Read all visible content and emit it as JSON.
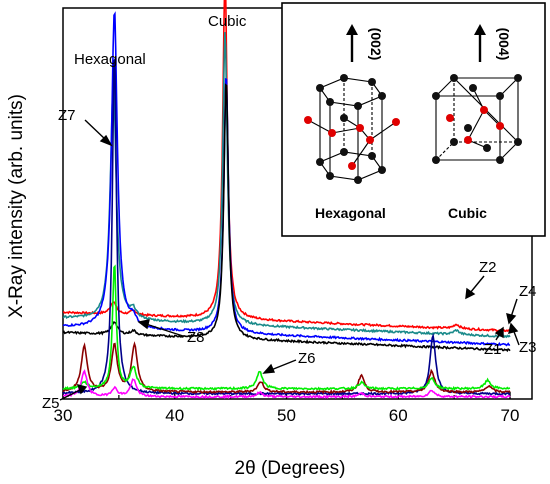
{
  "chart_data": {
    "type": "line",
    "xlabel": "2θ (Degrees)",
    "ylabel": "X-Ray intensity (arb. units)",
    "xlim": [
      30,
      70
    ],
    "xticks": [
      "30",
      "40",
      "50",
      "60",
      "70"
    ],
    "y_ticks_shown": false,
    "grid": false,
    "series": [
      {
        "name": "Z2",
        "color": "#ff0000",
        "baseline": 20.4,
        "slope": -0.11,
        "peaks": [
          {
            "x": 34.5,
            "h": 3
          },
          {
            "x": 36.3,
            "h": 1
          },
          {
            "x": 44.5,
            "h": 82,
            "w": 0.24
          },
          {
            "x": 65.2,
            "h": 1
          }
        ]
      },
      {
        "name": "Z4",
        "color": "#1a8a8a",
        "baseline": 19.0,
        "slope": -0.11,
        "peaks": [
          {
            "x": 34.5,
            "h": 56
          },
          {
            "x": 36.3,
            "h": 2
          },
          {
            "x": 44.5,
            "h": 70,
            "w": 0.24
          },
          {
            "x": 65.2,
            "h": 1
          }
        ]
      },
      {
        "name": "Z3",
        "color": "#0000ff",
        "baseline": 16.9,
        "slope": -0.105,
        "peaks": [
          {
            "x": 34.6,
            "h": 76
          },
          {
            "x": 36.3,
            "h": 2
          },
          {
            "x": 44.6,
            "h": 62,
            "w": 0.24
          }
        ]
      },
      {
        "name": "Z1",
        "color": "#000000",
        "baseline": 15.6,
        "slope": -0.105,
        "peaks": [
          {
            "x": 34.6,
            "h": 3
          },
          {
            "x": 36.3,
            "h": 1
          },
          {
            "x": 44.6,
            "h": 62,
            "w": 0.24
          }
        ]
      },
      {
        "name": "Z7",
        "color": "#00008b",
        "baseline": 1.0,
        "slope": 0,
        "peaks": [
          {
            "x": 34.6,
            "h": 82,
            "w": 0.22
          },
          {
            "x": 63.1,
            "h": 14,
            "w": 0.3
          }
        ]
      },
      {
        "name": "Z8",
        "color": "#8b0000",
        "baseline": 1.4,
        "slope": 0,
        "peaks": [
          {
            "x": 31.9,
            "h": 11
          },
          {
            "x": 34.6,
            "h": 11
          },
          {
            "x": 36.4,
            "h": 11
          },
          {
            "x": 47.7,
            "h": 2.5
          },
          {
            "x": 56.7,
            "h": 4
          },
          {
            "x": 63.0,
            "h": 5
          },
          {
            "x": 68.1,
            "h": 1.5
          }
        ]
      },
      {
        "name": "Z6",
        "color": "#00ee00",
        "baseline": 2.2,
        "slope": 0,
        "peaks": [
          {
            "x": 31.9,
            "h": 1.5
          },
          {
            "x": 34.6,
            "h": 30,
            "w": 0.2
          },
          {
            "x": 36.3,
            "h": 5
          },
          {
            "x": 47.6,
            "h": 4
          },
          {
            "x": 56.7,
            "h": 1.5
          },
          {
            "x": 63.0,
            "h": 2.5
          },
          {
            "x": 68.0,
            "h": 2
          }
        ]
      },
      {
        "name": "Z5",
        "color": "#ff00ff",
        "baseline": 0.3,
        "slope": 0,
        "peaks": [
          {
            "x": 31.9,
            "h": 6
          },
          {
            "x": 34.6,
            "h": 2
          },
          {
            "x": 36.3,
            "h": 4
          },
          {
            "x": 47.6,
            "h": 1
          },
          {
            "x": 56.7,
            "h": 0.8
          },
          {
            "x": 63.0,
            "h": 1.5
          }
        ]
      }
    ],
    "annotations": {
      "hexagonal": "Hexagonal",
      "cubic": "Cubic",
      "z7": "Z7",
      "z8": "Z8",
      "z6": "Z6",
      "z5": "Z5",
      "z2": "Z2",
      "z4": "Z4",
      "z3": "Z3",
      "z1": "Z1"
    },
    "inset": {
      "hexagonal_label": "Hexagonal",
      "cubic_label": "Cubic",
      "hex_direction": "(002)",
      "cubic_direction": "(004)"
    }
  }
}
